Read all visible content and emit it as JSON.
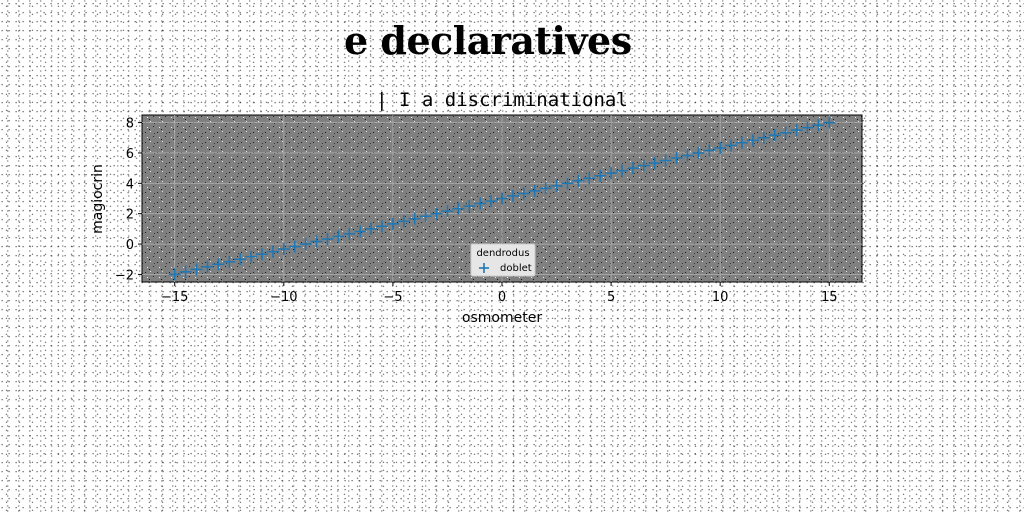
{
  "page_title": "e declaratives",
  "chart_data": {
    "type": "scatter",
    "title": "| I a discriminational",
    "xlabel": "osmometer",
    "ylabel": "magiocrin",
    "xlim": [
      -16.5,
      16.5
    ],
    "ylim": [
      -2.5,
      8.5
    ],
    "xticks": [
      -15,
      -10,
      -5,
      0,
      5,
      10,
      15
    ],
    "yticks": [
      -2,
      0,
      2,
      4,
      6,
      8
    ],
    "grid": true,
    "legend": {
      "title": "dendrodus",
      "entries": [
        "doblet"
      ],
      "placement": "bottom-center"
    },
    "colors": {
      "series": "#1f77b4",
      "plot_background": "#808080",
      "grid": "#b0b0b0"
    },
    "series": [
      {
        "name": "doblet",
        "marker": "plus",
        "x": [
          -15.0,
          -14.5,
          -14.0,
          -13.5,
          -13.0,
          -12.5,
          -12.0,
          -11.5,
          -11.0,
          -10.5,
          -10.0,
          -9.5,
          -9.0,
          -8.5,
          -8.0,
          -7.5,
          -7.0,
          -6.5,
          -6.0,
          -5.5,
          -5.0,
          -4.5,
          -4.0,
          -3.5,
          -3.0,
          -2.5,
          -2.0,
          -1.5,
          -1.0,
          -0.5,
          0.0,
          0.5,
          1.0,
          1.5,
          2.0,
          2.5,
          3.0,
          3.5,
          4.0,
          4.5,
          5.0,
          5.5,
          6.0,
          6.5,
          7.0,
          7.5,
          8.0,
          8.5,
          9.0,
          9.5,
          10.0,
          10.5,
          11.0,
          11.5,
          12.0,
          12.5,
          13.0,
          13.5,
          14.0,
          14.5,
          15.0
        ],
        "y": [
          -2.0,
          -1.83,
          -1.67,
          -1.5,
          -1.33,
          -1.17,
          -1.0,
          -0.83,
          -0.67,
          -0.5,
          -0.33,
          -0.17,
          0.0,
          0.17,
          0.33,
          0.5,
          0.67,
          0.83,
          1.0,
          1.17,
          1.33,
          1.5,
          1.67,
          1.83,
          2.0,
          2.17,
          2.33,
          2.5,
          2.67,
          2.83,
          3.0,
          3.17,
          3.33,
          3.5,
          3.67,
          3.83,
          4.0,
          4.17,
          4.33,
          4.5,
          4.67,
          4.83,
          5.0,
          5.17,
          5.33,
          5.5,
          5.67,
          5.83,
          6.0,
          6.17,
          6.33,
          6.5,
          6.67,
          6.83,
          7.0,
          7.17,
          7.33,
          7.5,
          7.67,
          7.83,
          8.0
        ]
      }
    ]
  }
}
